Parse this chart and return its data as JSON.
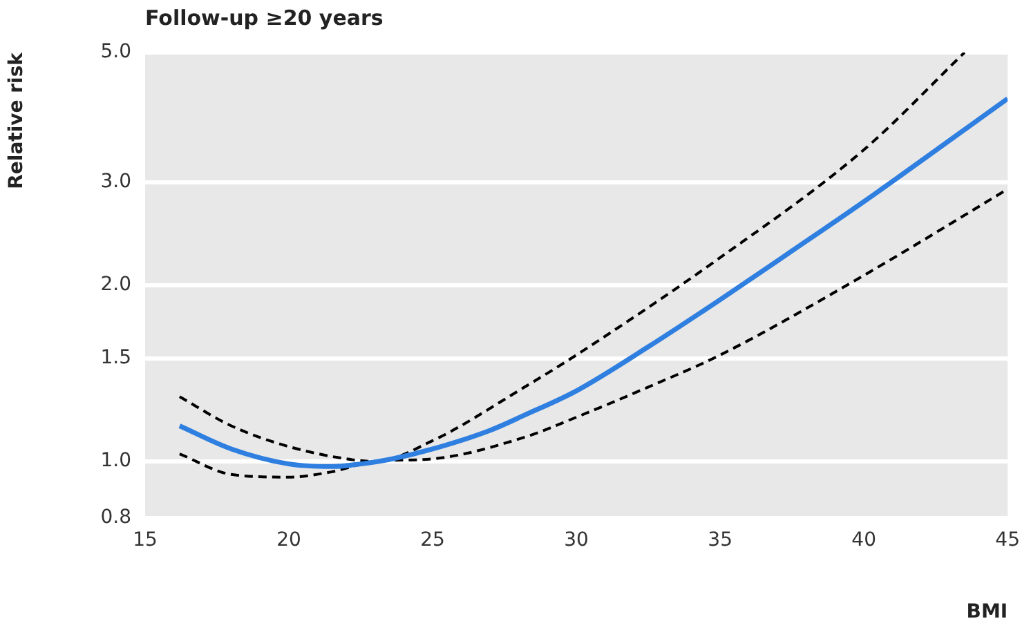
{
  "chart_data": {
    "type": "line",
    "title": "Follow-up ≥20 years",
    "xlabel": "BMI",
    "ylabel": "Relative risk",
    "xlim": [
      15,
      45
    ],
    "xticks": [
      15,
      20,
      25,
      30,
      35,
      40,
      45
    ],
    "ylim": [
      0.8,
      5.0
    ],
    "yticks": [
      {
        "value": 0.8,
        "label": "0.8"
      },
      {
        "value": 1,
        "label": "1.0"
      },
      {
        "value": 1.5,
        "label": "1.5"
      },
      {
        "value": 2,
        "label": "2.0"
      },
      {
        "value": 3,
        "label": "3.0"
      },
      {
        "value": 5,
        "label": "5.0"
      }
    ],
    "log": "y",
    "grid": "y",
    "legend": false,
    "marker": "none",
    "series": [
      {
        "color": "#2f7fe0",
        "line_style": "solid",
        "x": [
          16.2,
          18,
          20,
          21.5,
          22.5,
          23.6,
          25,
          27,
          28.2,
          30,
          32.5,
          35,
          37.5,
          40,
          45
        ],
        "values": [
          1.15,
          1.05,
          0.99,
          0.98,
          0.99,
          1.01,
          1.05,
          1.13,
          1.2,
          1.32,
          1.57,
          1.89,
          2.29,
          2.78,
          4.17
        ]
      },
      {
        "color": "#000000",
        "line_style": "dashed",
        "x": [
          16.2,
          18,
          20,
          22,
          23,
          25,
          28.2,
          30,
          35,
          40,
          43.5
        ],
        "values": [
          1.29,
          1.15,
          1.06,
          1.01,
          1.0,
          1.085,
          1.34,
          1.52,
          2.23,
          3.41,
          5.0
        ]
      },
      {
        "color": "#000000",
        "line_style": "dashed",
        "x": [
          16.2,
          18,
          20,
          21.5,
          23,
          25,
          28.2,
          30,
          32.5,
          35,
          40,
          45
        ],
        "values": [
          1.03,
          0.95,
          0.94,
          0.96,
          1.0,
          1.01,
          1.1,
          1.19,
          1.34,
          1.52,
          2.08,
          2.92
        ]
      }
    ]
  }
}
